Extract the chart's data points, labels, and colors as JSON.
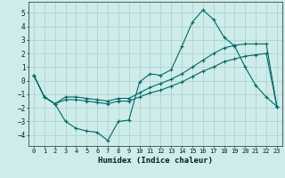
{
  "xlabel": "Humidex (Indice chaleur)",
  "xlim": [
    -0.5,
    23.5
  ],
  "ylim": [
    -4.8,
    5.8
  ],
  "xticks": [
    0,
    1,
    2,
    3,
    4,
    5,
    6,
    7,
    8,
    9,
    10,
    11,
    12,
    13,
    14,
    15,
    16,
    17,
    18,
    19,
    20,
    21,
    22,
    23
  ],
  "yticks": [
    -4,
    -3,
    -2,
    -1,
    0,
    1,
    2,
    3,
    4,
    5
  ],
  "background_color": "#ceecea",
  "grid_color": "#aed4d2",
  "line_color": "#006868",
  "series": [
    {
      "x": [
        0,
        1,
        2,
        3,
        4,
        5,
        6,
        7,
        8,
        9,
        10,
        11,
        12,
        13,
        14,
        15,
        16,
        17,
        18,
        19,
        20,
        21,
        22,
        23
      ],
      "y": [
        0.4,
        -1.2,
        -1.7,
        -3.0,
        -3.5,
        -3.7,
        -3.8,
        -4.4,
        -3.0,
        -2.9,
        -0.1,
        0.5,
        0.4,
        0.8,
        2.5,
        4.3,
        5.2,
        4.5,
        3.2,
        2.55,
        1.0,
        -0.35,
        -1.2,
        -1.9
      ]
    },
    {
      "x": [
        0,
        1,
        2,
        3,
        4,
        5,
        6,
        7,
        8,
        9,
        10,
        11,
        12,
        13,
        14,
        15,
        16,
        17,
        18,
        19,
        20,
        21,
        22,
        23
      ],
      "y": [
        0.4,
        -1.2,
        -1.7,
        -1.4,
        -1.4,
        -1.5,
        -1.6,
        -1.7,
        -1.5,
        -1.5,
        -1.2,
        -0.9,
        -0.7,
        -0.4,
        -0.1,
        0.3,
        0.7,
        1.0,
        1.4,
        1.6,
        1.8,
        1.9,
        2.0,
        -1.9
      ]
    },
    {
      "x": [
        0,
        1,
        2,
        3,
        4,
        5,
        6,
        7,
        8,
        9,
        10,
        11,
        12,
        13,
        14,
        15,
        16,
        17,
        18,
        19,
        20,
        21,
        22,
        23
      ],
      "y": [
        0.4,
        -1.2,
        -1.7,
        -1.2,
        -1.2,
        -1.3,
        -1.4,
        -1.5,
        -1.3,
        -1.3,
        -0.9,
        -0.5,
        -0.2,
        0.1,
        0.5,
        1.0,
        1.5,
        2.0,
        2.4,
        2.6,
        2.7,
        2.7,
        2.7,
        -1.9
      ]
    }
  ]
}
